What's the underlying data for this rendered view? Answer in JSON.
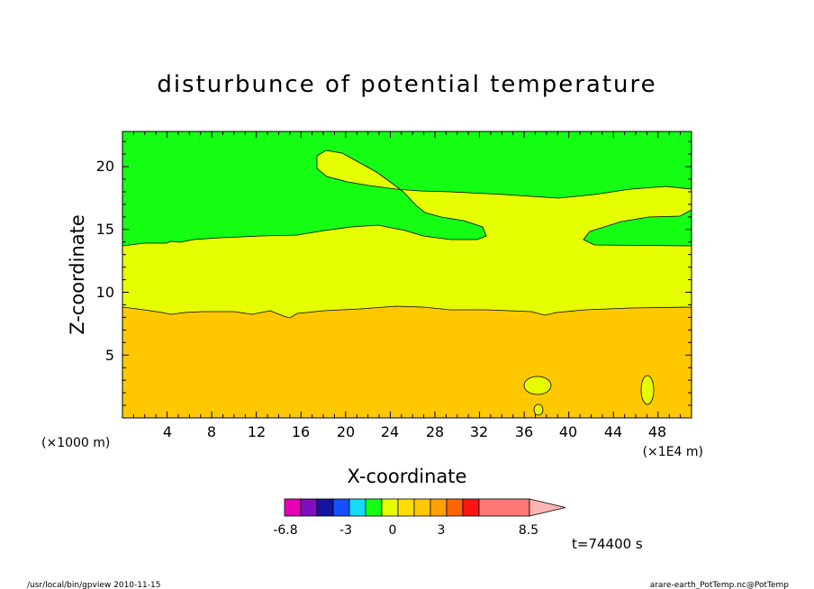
{
  "chart_data": {
    "type": "heatmap",
    "title": "disturbunce of potential temperature",
    "xlabel": "X-coordinate",
    "ylabel": "Z-coordinate",
    "x_unit_left": "(×1000 m)",
    "x_unit_right": "(×1E4 m)",
    "x_ticks": [
      "4",
      "8",
      "12",
      "16",
      "20",
      "24",
      "28",
      "32",
      "36",
      "40",
      "44",
      "48"
    ],
    "y_ticks": [
      "5",
      "10",
      "15",
      "20"
    ],
    "xlim": [
      0,
      51
    ],
    "ylim": [
      0,
      22.8
    ],
    "time_label": "t=74400 s",
    "footer_left": "/usr/local/bin/gpview  2010-11-15",
    "footer_right": "arare-earth_PotTemp.nc@PotTemp",
    "colorbar": {
      "labels": [
        "-6.8",
        "-3",
        "0",
        "3",
        "8.5"
      ],
      "label_index": [
        0,
        3,
        5,
        8,
        12
      ],
      "colors": [
        "#e600b4",
        "#7d0fbe",
        "#1414a0",
        "#1450ff",
        "#14dcff",
        "#14ff14",
        "#e6ff00",
        "#ffdc00",
        "#ffc800",
        "#ffa000",
        "#ff6400",
        "#ff1414",
        "#ff7878",
        "#ffb4b4"
      ]
    },
    "regions": [
      {
        "level": "upper",
        "color": "#14ff14",
        "z_range": [
          13.7,
          22.8
        ]
      },
      {
        "level": "middle",
        "color": "#e6ff00",
        "z_range": [
          8.6,
          13.7
        ]
      },
      {
        "level": "lower",
        "color": "#ffc800",
        "z_range": [
          0,
          8.6
        ]
      }
    ]
  }
}
